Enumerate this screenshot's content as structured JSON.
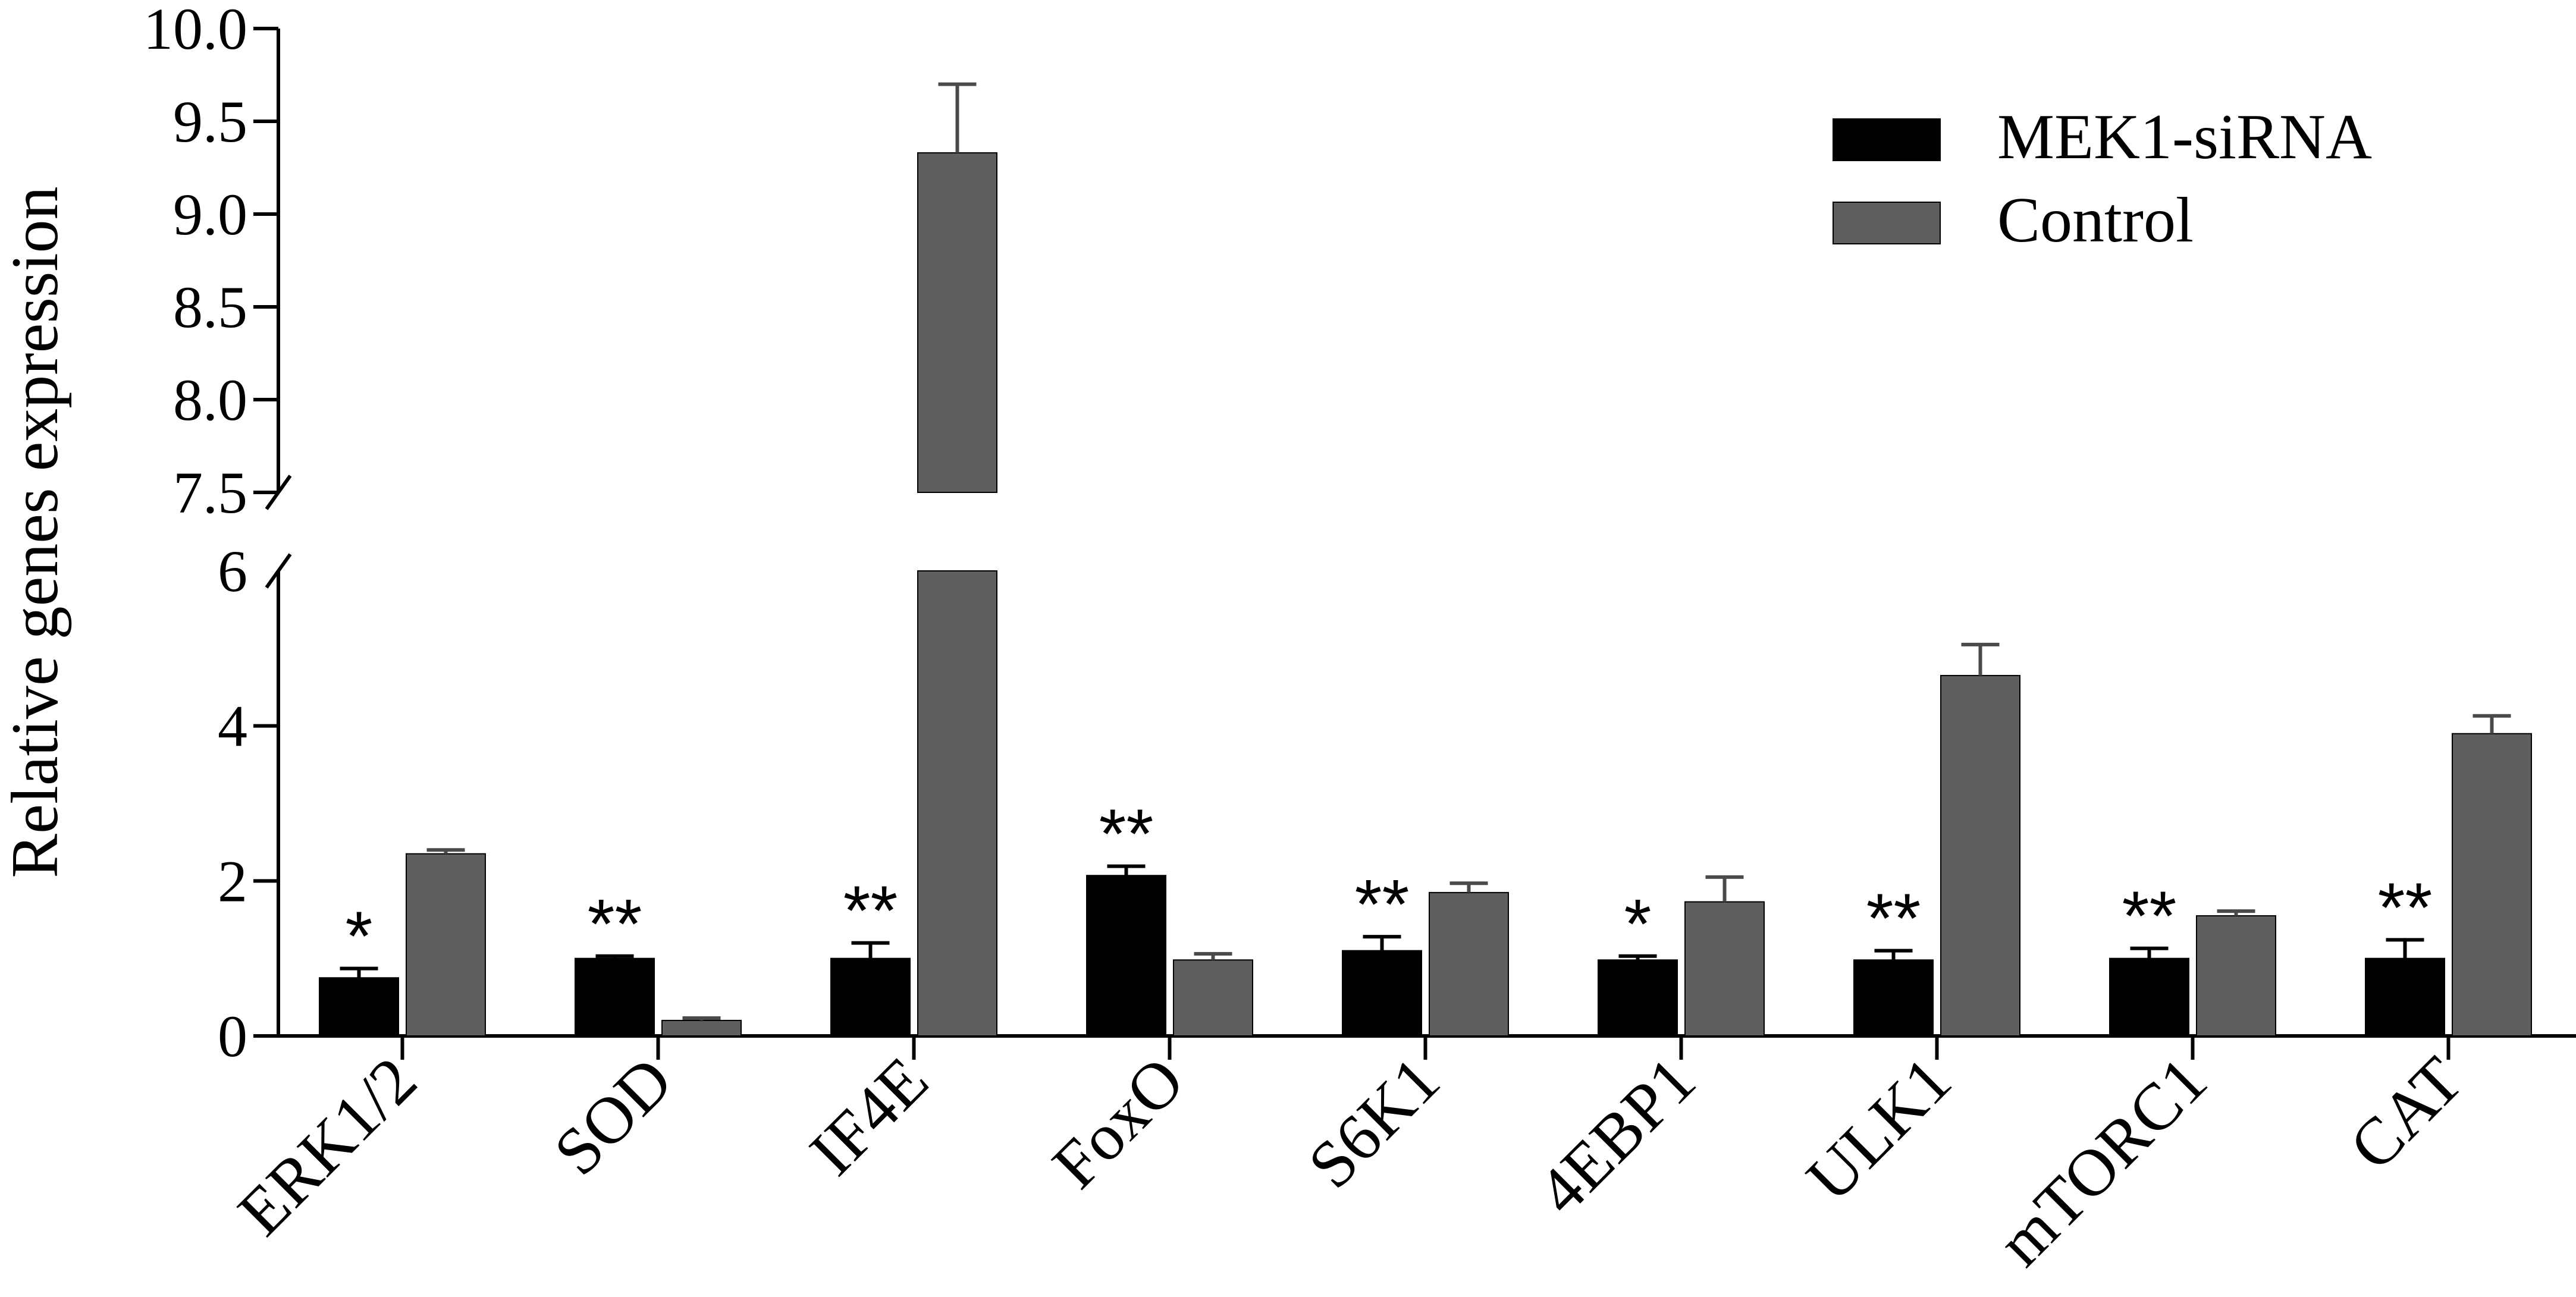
{
  "chart_data": {
    "type": "bar",
    "ylabel": "Relative genes expression",
    "categories": [
      "ERK1/2",
      "SOD",
      "IF4E",
      "FoxO",
      "S6K1",
      "4EBP1",
      "ULK1",
      "mTORC1",
      "CAT"
    ],
    "series": [
      {
        "name": "MEK1-siRNA",
        "color": "#000000",
        "values": [
          0.75,
          1.0,
          1.0,
          2.07,
          1.1,
          0.98,
          0.98,
          1.0,
          1.0
        ],
        "errors": [
          0.12,
          0.03,
          0.2,
          0.12,
          0.18,
          0.05,
          0.12,
          0.13,
          0.24
        ]
      },
      {
        "name": "Control",
        "color": "#5f5f5f",
        "values": [
          2.35,
          0.2,
          9.33,
          0.98,
          1.85,
          1.73,
          4.65,
          1.55,
          3.9
        ],
        "errors": [
          0.05,
          0.03,
          0.37,
          0.08,
          0.12,
          0.32,
          0.4,
          0.06,
          0.23
        ]
      }
    ],
    "significance": [
      "*",
      "**",
      "**",
      "**",
      "**",
      "*",
      "**",
      "**",
      "**"
    ],
    "y_axis": {
      "broken": true,
      "lower_range": [
        0,
        6
      ],
      "lower_ticks": [
        "0",
        "2",
        "4",
        "6"
      ],
      "upper_range": [
        7.5,
        10.0
      ],
      "upper_ticks": [
        "7.5",
        "8.0",
        "8.5",
        "9.0",
        "9.5",
        "10.0"
      ]
    },
    "legend_position": "top-right",
    "grid": false
  }
}
